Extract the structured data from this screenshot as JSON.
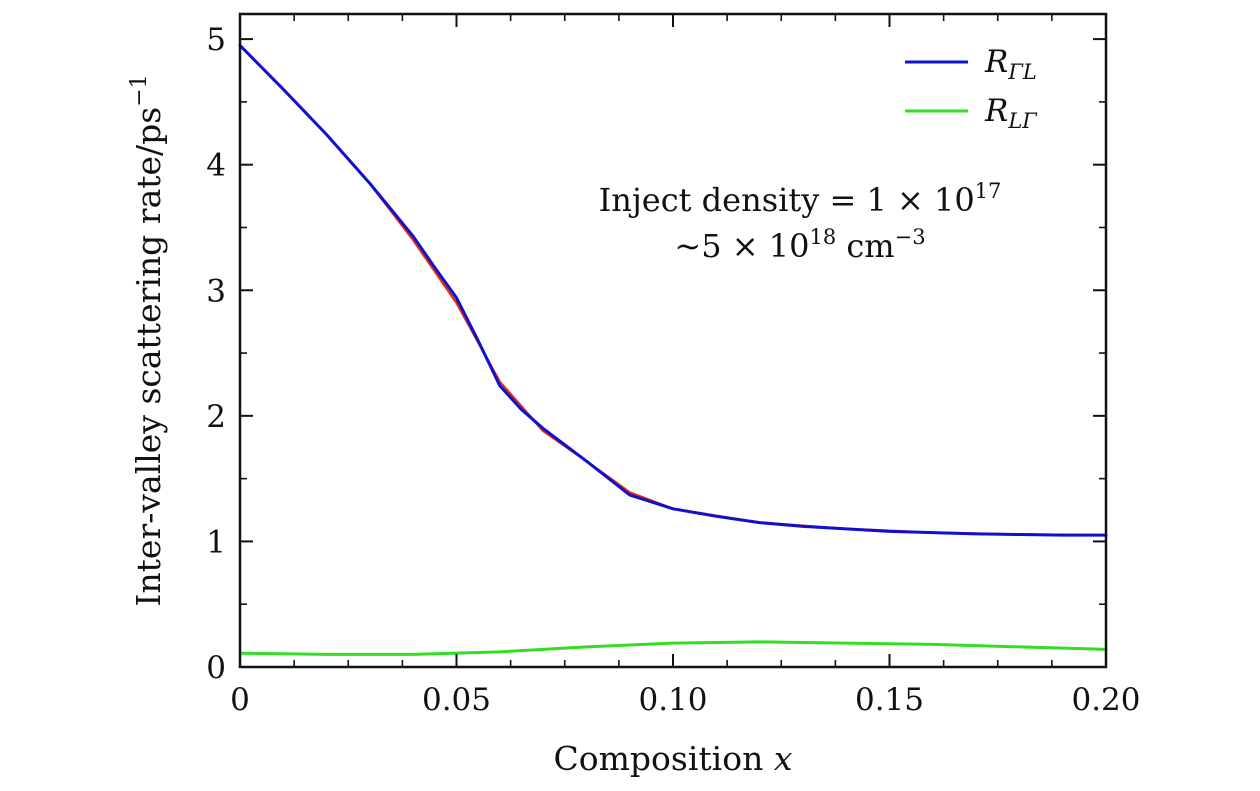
{
  "chart_data": {
    "type": "line",
    "title": "",
    "xlabel": "Composition",
    "xlabel_var": "x",
    "ylabel": "Inter-valley scattering rate/ps",
    "ylabel_sup": "−1",
    "xlim": [
      0,
      0.2
    ],
    "ylim": [
      0,
      5.2
    ],
    "xticks": [
      0,
      0.05,
      0.1,
      0.15,
      0.2
    ],
    "xtick_labels": [
      "0",
      "0.05",
      "0.10",
      "0.15",
      "0.20"
    ],
    "yticks": [
      0,
      1,
      2,
      3,
      4,
      5
    ],
    "ytick_labels": [
      "0",
      "1",
      "2",
      "3",
      "4",
      "5"
    ],
    "grid": false,
    "legend_position": "top-right",
    "annotation": {
      "line1": "Inject density = 1 × 10",
      "line1_sup": "17",
      "line2_pre": "~5 × 10",
      "line2_sup": "18",
      "line2_post": " cm",
      "line2_sup2": "−3"
    },
    "series": [
      {
        "name": "R",
        "subscript": "ΓL",
        "color": "#1010d0",
        "in_legend": true,
        "x": [
          0,
          0.01,
          0.02,
          0.03,
          0.04,
          0.045,
          0.05,
          0.055,
          0.06,
          0.065,
          0.07,
          0.08,
          0.09,
          0.1,
          0.11,
          0.12,
          0.13,
          0.14,
          0.15,
          0.16,
          0.17,
          0.18,
          0.19,
          0.2
        ],
        "values": [
          4.95,
          4.6,
          4.24,
          3.85,
          3.43,
          3.18,
          2.94,
          2.6,
          2.24,
          2.05,
          1.9,
          1.64,
          1.37,
          1.26,
          1.2,
          1.15,
          1.12,
          1.1,
          1.08,
          1.07,
          1.06,
          1.055,
          1.05,
          1.05
        ]
      },
      {
        "name": "R",
        "subscript": "LΓ",
        "color": "#33dd22",
        "in_legend": true,
        "x": [
          0,
          0.02,
          0.04,
          0.06,
          0.08,
          0.1,
          0.12,
          0.14,
          0.16,
          0.18,
          0.2
        ],
        "values": [
          0.11,
          0.1,
          0.1,
          0.12,
          0.16,
          0.19,
          0.2,
          0.19,
          0.18,
          0.16,
          0.14
        ]
      },
      {
        "name": "",
        "subscript": "",
        "color": "#e03010",
        "in_legend": false,
        "x": [
          0,
          0.01,
          0.02,
          0.03,
          0.04,
          0.05,
          0.06,
          0.07,
          0.08,
          0.09,
          0.1,
          0.12,
          0.14,
          0.16,
          0.18,
          0.2
        ],
        "values": [
          4.95,
          4.6,
          4.24,
          3.85,
          3.4,
          2.9,
          2.27,
          1.88,
          1.64,
          1.39,
          1.26,
          1.15,
          1.1,
          1.07,
          1.055,
          1.05
        ]
      }
    ]
  }
}
